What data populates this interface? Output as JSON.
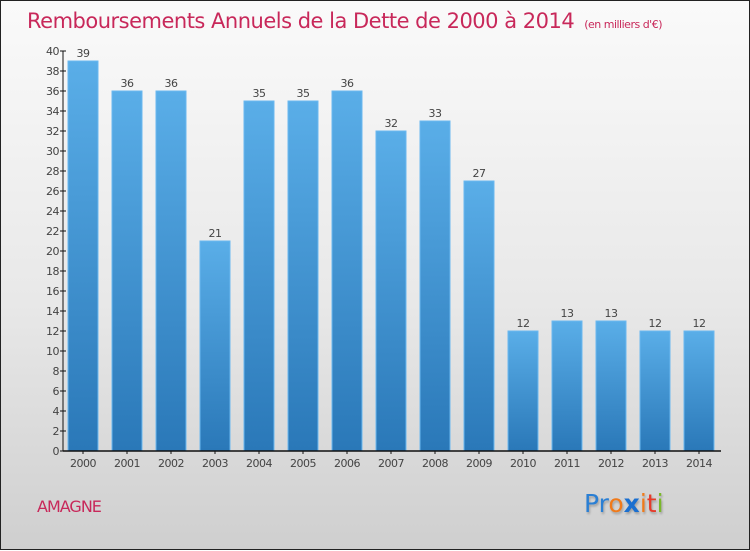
{
  "title": "Remboursements Annuels de la Dette de 2000 à 2014",
  "subtitle": "(en milliers d'€)",
  "commune": "AMAGNE",
  "logo": {
    "letters": [
      {
        "char": "P",
        "color": "#2a7fd4"
      },
      {
        "char": "r",
        "color": "#2a7fd4"
      },
      {
        "char": "o",
        "color": "#f07a1a"
      },
      {
        "char": "x",
        "color": "#1a6fd0"
      },
      {
        "char": "i",
        "color": "#f07a1a"
      },
      {
        "char": "t",
        "color": "#e63a2a"
      },
      {
        "char": "i",
        "color": "#7ab82a"
      }
    ]
  },
  "colors": {
    "title": "#c8285a",
    "bar_top": "#5aaee8",
    "bar_bottom": "#2a78b8",
    "bar_edge": "#6ab8f0",
    "axis": "#111111"
  },
  "chart_data": {
    "type": "bar",
    "title": "Remboursements Annuels de la Dette de 2000 à 2014",
    "subtitle": "(en milliers d'€)",
    "xlabel": "",
    "ylabel": "",
    "categories": [
      "2000",
      "2001",
      "2002",
      "2003",
      "2004",
      "2005",
      "2006",
      "2007",
      "2008",
      "2009",
      "2010",
      "2011",
      "2012",
      "2013",
      "2014"
    ],
    "values": [
      39,
      36,
      36,
      21,
      35,
      35,
      36,
      32,
      33,
      27,
      12,
      13,
      13,
      12,
      12
    ],
    "ylim": [
      0,
      40
    ],
    "yticks": [
      0,
      2,
      4,
      6,
      8,
      10,
      12,
      14,
      16,
      18,
      20,
      22,
      24,
      26,
      28,
      30,
      32,
      34,
      36,
      38,
      40
    ],
    "grid": false,
    "legend": "none",
    "data_labels": true
  }
}
